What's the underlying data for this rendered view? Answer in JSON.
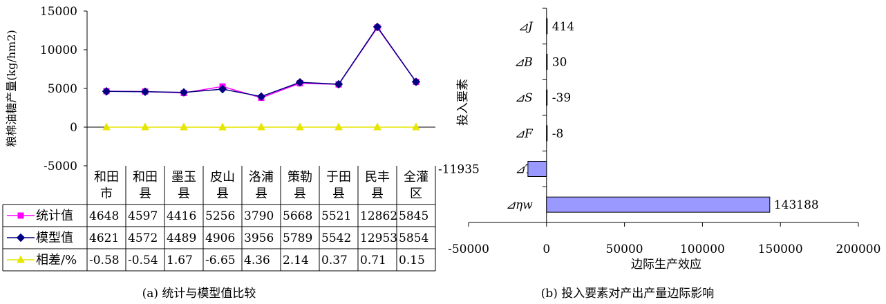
{
  "chart_data": [
    {
      "type": "line",
      "ylabel": "粮棉油糖产量(kg/hm2)",
      "ylim": [
        -5000,
        15000
      ],
      "yticks": [
        "15000",
        "10000",
        "5000",
        "0",
        "-5000"
      ],
      "categories": [
        [
          "和田",
          "市"
        ],
        [
          "和田",
          "县"
        ],
        [
          "墨玉",
          "县"
        ],
        [
          "皮山",
          "县"
        ],
        [
          "洛浦",
          "县"
        ],
        [
          "策勒",
          "县"
        ],
        [
          "于田",
          "县"
        ],
        [
          "民丰",
          "县"
        ],
        [
          "全灌",
          "区"
        ]
      ],
      "series": [
        {
          "name": "统计值",
          "color": "#ff00ff",
          "marker": "square",
          "values": [
            4648,
            4597,
            4416,
            5256,
            3790,
            5668,
            5521,
            12862,
            5845
          ],
          "labels": [
            "4648",
            "4597",
            "4416",
            "5256",
            "3790",
            "5668",
            "5521",
            "12862",
            "5845"
          ]
        },
        {
          "name": "模型值",
          "color": "#000080",
          "marker": "diamond",
          "values": [
            4621,
            4572,
            4489,
            4906,
            3956,
            5789,
            5542,
            12953,
            5854
          ],
          "labels": [
            "4621",
            "4572",
            "4489",
            "4906",
            "3956",
            "5789",
            "5542",
            "12953",
            "5854"
          ]
        },
        {
          "name": "相差/%",
          "color": "#e6e600",
          "marker": "triangle",
          "values": [
            -0.58,
            -0.54,
            1.67,
            -6.65,
            4.36,
            2.14,
            0.37,
            0.71,
            0.15
          ],
          "labels": [
            "-0.58",
            "-0.54",
            "1.67",
            "-6.65",
            "4.36",
            "2.14",
            "0.37",
            "0.71",
            "0.15"
          ]
        }
      ],
      "caption": "(a)  统计与模型值比较"
    },
    {
      "type": "bar",
      "orientation": "horizontal",
      "xlabel": "边际生产效应",
      "ylabel": "投入要素",
      "xlim": [
        -50000,
        200000
      ],
      "xticks": [
        "-50000",
        "0",
        "50000",
        "100000",
        "150000",
        "200000"
      ],
      "categories": [
        "⊿J",
        "⊿B",
        "⊿S",
        "⊿F",
        "⊿T",
        "⊿ηw"
      ],
      "values": [
        414,
        30,
        -39,
        -8,
        -11935,
        143188
      ],
      "value_labels": [
        "414",
        "30",
        "-39",
        "-8",
        "-11935",
        "143188"
      ],
      "bar_color": "#9999ff",
      "caption": "(b)  投入要素对产出产量边际影响"
    }
  ]
}
